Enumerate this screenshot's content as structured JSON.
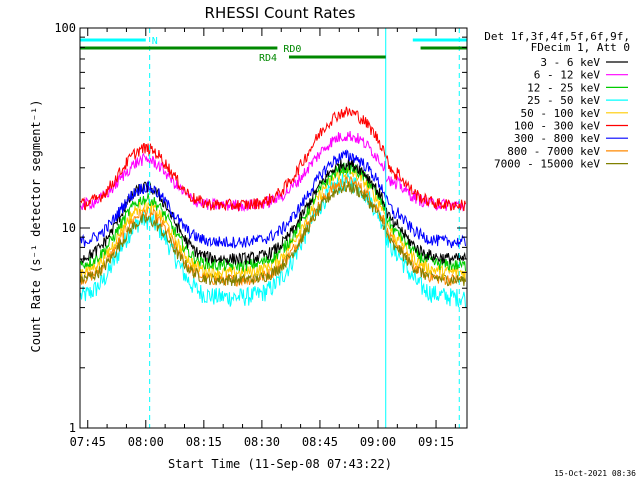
{
  "chart_data": {
    "type": "line",
    "title": "RHESSI Count Rates",
    "xlabel": "Start Time (11-Sep-08 07:43:22)",
    "ylabel": "Count Rate (s⁻¹ detector segment⁻¹)",
    "yscale": "log",
    "ylim": [
      1,
      100
    ],
    "xlim_minutes_after_0743": [
      0,
      100
    ],
    "x_ticks": [
      {
        "label": "07:45",
        "min": 2
      },
      {
        "label": "08:00",
        "min": 17
      },
      {
        "label": "08:15",
        "min": 32
      },
      {
        "label": "08:30",
        "min": 47
      },
      {
        "label": "08:45",
        "min": 62
      },
      {
        "label": "09:00",
        "min": 77
      },
      {
        "label": "09:15",
        "min": 92
      }
    ],
    "y_tick_labels": [
      {
        "label": "1",
        "value": 1
      },
      {
        "label": "10",
        "value": 10
      },
      {
        "label": "100",
        "value": 100
      }
    ],
    "legend_header": [
      "Det 1f,3f,4f,5f,6f,9f,",
      "FDecim 1, Att 0"
    ],
    "series": [
      {
        "name": "3 - 6 keV",
        "color": "#000000",
        "base": 7.0,
        "peak1": 16.0,
        "peak2": 21.0
      },
      {
        "name": "6 - 12 keV",
        "color": "#ff00ff",
        "base": 13.0,
        "peak1": 22.0,
        "peak2": 29.0
      },
      {
        "name": "12 - 25 keV",
        "color": "#00cc00",
        "base": 6.5,
        "peak1": 14.0,
        "peak2": 20.0
      },
      {
        "name": "25 - 50 keV",
        "color": "#00ffff",
        "base": 4.5,
        "peak1": 11.0,
        "peak2": 17.0
      },
      {
        "name": "50 - 100 keV",
        "color": "#ffcc00",
        "base": 6.0,
        "peak1": 13.0,
        "peak2": 19.0
      },
      {
        "name": "100 - 300 keV",
        "color": "#ff0000",
        "base": 13.0,
        "peak1": 25.0,
        "peak2": 38.0
      },
      {
        "name": "300 - 800 keV",
        "color": "#0000ff",
        "base": 8.5,
        "peak1": 16.0,
        "peak2": 23.0
      },
      {
        "name": "800 - 7000 keV",
        "color": "#ff8800",
        "base": 5.5,
        "peak1": 12.0,
        "peak2": 17.0
      },
      {
        "name": "7000 - 15000 keV",
        "color": "#808000",
        "base": 5.5,
        "peak1": 11.0,
        "peak2": 16.0
      }
    ],
    "flags": [
      {
        "label": "N",
        "color": "#00ffff",
        "segments": [
          [
            0,
            17
          ],
          [
            86,
            100
          ]
        ]
      },
      {
        "label": "RD0",
        "color": "#008800",
        "segments": [
          [
            0,
            51
          ],
          [
            88,
            100
          ]
        ]
      },
      {
        "label": "RD4",
        "color": "#008800",
        "segments": [
          [
            54,
            79
          ]
        ]
      }
    ],
    "vlines": [
      {
        "min": 0,
        "style": "solid",
        "color": "#00ffff"
      },
      {
        "min": 18,
        "style": "dashed",
        "color": "#00ffff"
      },
      {
        "min": 79,
        "style": "solid",
        "color": "#00ffff"
      },
      {
        "min": 98,
        "style": "dashed",
        "color": "#00ffff"
      }
    ]
  },
  "footer": {
    "timestamp": "15-Oct-2021 08:36"
  }
}
